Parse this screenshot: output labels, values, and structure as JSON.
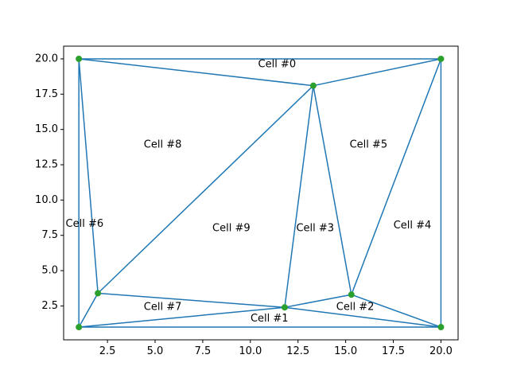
{
  "chart_data": {
    "type": "triangulation",
    "title": "",
    "xlabel": "",
    "ylabel": "",
    "xlim": [
      0.2,
      20.9
    ],
    "ylim": [
      0.1,
      20.9
    ],
    "xticks": [
      2.5,
      5.0,
      7.5,
      10.0,
      12.5,
      15.0,
      17.5,
      20.0
    ],
    "yticks": [
      2.5,
      5.0,
      7.5,
      10.0,
      12.5,
      15.0,
      17.5,
      20.0
    ],
    "xtick_labels": [
      "2.5",
      "5.0",
      "7.5",
      "10.0",
      "12.5",
      "15.0",
      "17.5",
      "20.0"
    ],
    "ytick_labels": [
      "2.5",
      "5.0",
      "7.5",
      "10.0",
      "12.5",
      "15.0",
      "17.5",
      "20.0"
    ],
    "line_color": "#1f77b4",
    "point_color": "#2ca02c",
    "points": [
      {
        "x": 1.0,
        "y": 20.0
      },
      {
        "x": 20.0,
        "y": 20.0
      },
      {
        "x": 13.3,
        "y": 18.1
      },
      {
        "x": 2.0,
        "y": 3.4
      },
      {
        "x": 11.8,
        "y": 2.4
      },
      {
        "x": 15.3,
        "y": 3.3
      },
      {
        "x": 1.0,
        "y": 1.0
      },
      {
        "x": 20.0,
        "y": 1.0
      }
    ],
    "edges": [
      [
        0,
        1
      ],
      [
        0,
        2
      ],
      [
        2,
        1
      ],
      [
        1,
        7
      ],
      [
        1,
        5
      ],
      [
        2,
        5
      ],
      [
        2,
        4
      ],
      [
        2,
        3
      ],
      [
        0,
        3
      ],
      [
        0,
        6
      ],
      [
        6,
        7
      ],
      [
        6,
        4
      ],
      [
        6,
        3
      ],
      [
        3,
        4
      ],
      [
        4,
        5
      ],
      [
        4,
        7
      ],
      [
        5,
        7
      ]
    ],
    "cells": [
      {
        "label": "Cell #0",
        "x": 11.4,
        "y": 19.6
      },
      {
        "label": "Cell #1",
        "x": 11.0,
        "y": 1.6
      },
      {
        "label": "Cell #2",
        "x": 15.5,
        "y": 2.4
      },
      {
        "label": "Cell #3",
        "x": 13.4,
        "y": 8.0
      },
      {
        "label": "Cell #4",
        "x": 18.5,
        "y": 8.2
      },
      {
        "label": "Cell #5",
        "x": 16.2,
        "y": 13.9
      },
      {
        "label": "Cell #6",
        "x": 1.3,
        "y": 8.3
      },
      {
        "label": "Cell #7",
        "x": 5.4,
        "y": 2.4
      },
      {
        "label": "Cell #8",
        "x": 5.4,
        "y": 13.9
      },
      {
        "label": "Cell #9",
        "x": 9.0,
        "y": 8.0
      }
    ]
  }
}
